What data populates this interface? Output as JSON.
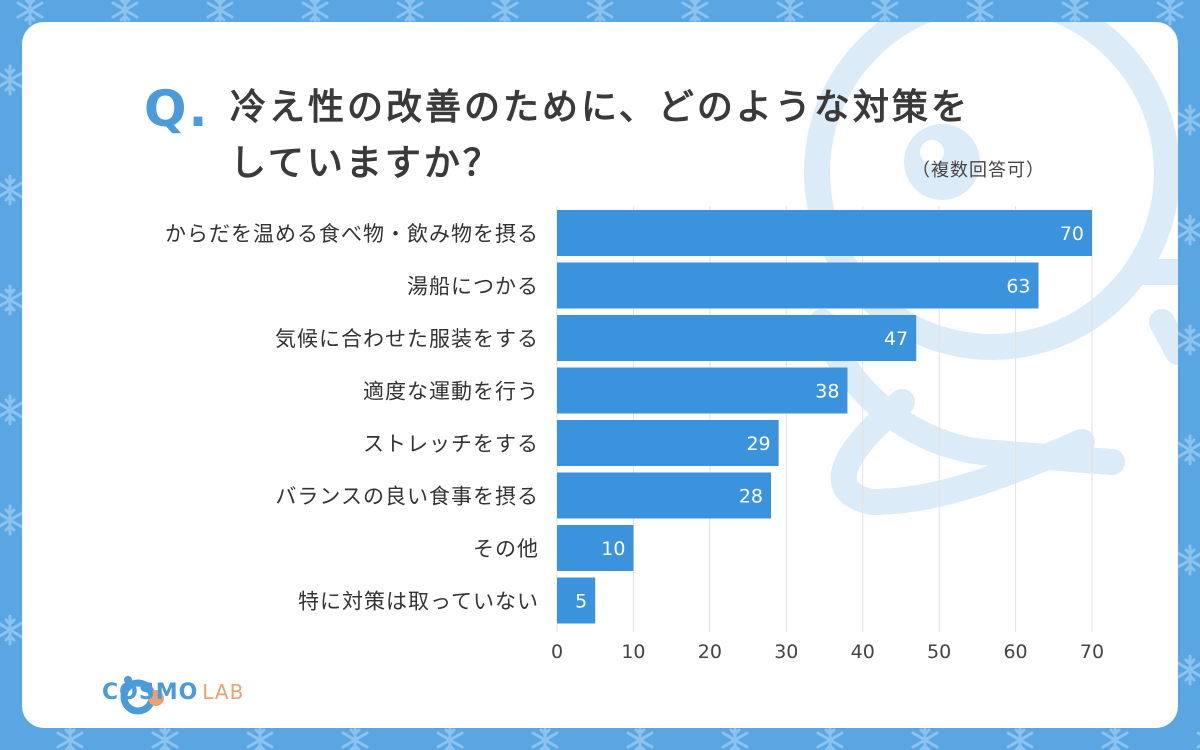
{
  "header": {
    "q_mark": "Q.",
    "title_line1": "冷え性の改善のために、どのような対策を",
    "title_line2": "していますか？",
    "note": "（複数回答可）"
  },
  "logo": {
    "part1": "COSMO",
    "part2": "LAB"
  },
  "colors": {
    "background": "#5aa6e2",
    "bar": "#3b93dd",
    "accent": "#4b9ad9",
    "logo_accent": "#f0a070"
  },
  "chart_data": {
    "type": "bar",
    "orientation": "horizontal",
    "title": "冷え性の改善のために、どのような対策をしていますか？",
    "categories": [
      "からだを温める食べ物・飲み物を摂る",
      "湯船につかる",
      "気候に合わせた服装をする",
      "適度な運動を行う",
      "ストレッチをする",
      "バランスの良い食事を摂る",
      "その他",
      "特に対策は取っていない"
    ],
    "values": [
      70,
      63,
      47,
      38,
      29,
      28,
      10,
      5
    ],
    "xlim": [
      0,
      70
    ],
    "xticks": [
      0,
      10,
      20,
      30,
      40,
      50,
      60,
      70
    ],
    "xlabel": "",
    "ylabel": "",
    "grid": true
  }
}
